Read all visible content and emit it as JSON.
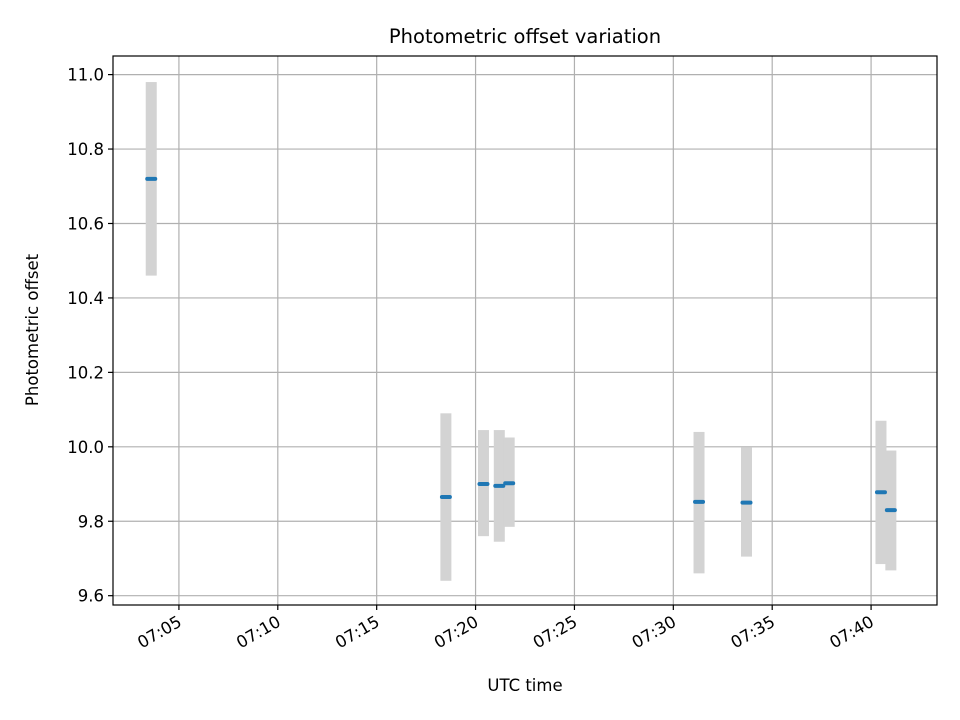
{
  "chart_data": {
    "type": "scatter",
    "title": "Photometric offset variation",
    "xlabel": "UTC time",
    "ylabel": "Photometric offset",
    "grid": true,
    "xlim": [
      "07:01:40",
      "07:43:20"
    ],
    "ylim": [
      9.575,
      11.05
    ],
    "x_ticks": [
      "07:05",
      "07:10",
      "07:15",
      "07:20",
      "07:25",
      "07:30",
      "07:35",
      "07:40"
    ],
    "y_ticks": [
      "9.6",
      "9.8",
      "10.0",
      "10.2",
      "10.4",
      "10.6",
      "10.8",
      "11.0"
    ],
    "series": [
      {
        "points": [
          {
            "x": "07:03:36",
            "y": 10.72,
            "err_low": 10.46,
            "err_high": 10.98
          },
          {
            "x": "07:18:30",
            "y": 9.865,
            "err_low": 9.64,
            "err_high": 10.09
          },
          {
            "x": "07:20:24",
            "y": 9.9,
            "err_low": 9.76,
            "err_high": 10.045
          },
          {
            "x": "07:21:12",
            "y": 9.895,
            "err_low": 9.745,
            "err_high": 10.045
          },
          {
            "x": "07:21:42",
            "y": 9.902,
            "err_low": 9.785,
            "err_high": 10.025
          },
          {
            "x": "07:31:18",
            "y": 9.852,
            "err_low": 9.66,
            "err_high": 10.04
          },
          {
            "x": "07:33:42",
            "y": 9.85,
            "err_low": 9.705,
            "err_high": 9.998
          },
          {
            "x": "07:40:30",
            "y": 9.878,
            "err_low": 9.685,
            "err_high": 10.07
          },
          {
            "x": "07:41:00",
            "y": 9.83,
            "err_low": 9.668,
            "err_high": 9.99
          }
        ]
      }
    ],
    "colors": {
      "point": "#1f77b4",
      "errorbar": "#d3d3d3",
      "grid": "#b0b0b0",
      "axes": "#000000"
    }
  }
}
